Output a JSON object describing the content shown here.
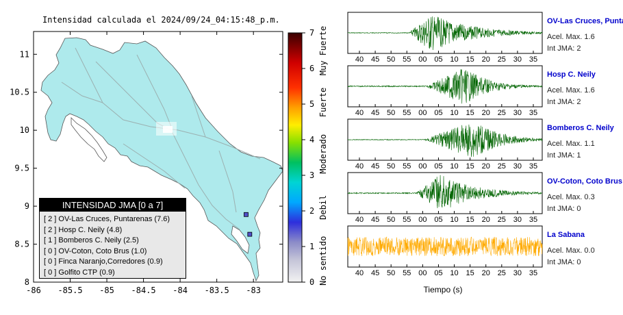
{
  "chart_data": [
    {
      "type": "map",
      "title": "Intensidad calculada el 2024/09/24_04:15:48_p.m.",
      "xlim": [
        -86,
        -82.6
      ],
      "ylim": [
        8,
        11.3
      ],
      "xticks": [
        "-86",
        "-85.5",
        "-85",
        "-84.5",
        "-84",
        "-83.5",
        "-83"
      ],
      "yticks": [
        "8",
        "8.5",
        "9",
        "9.5",
        "10",
        "10.5",
        "11"
      ],
      "land_color": "#aeeaec",
      "stations": [
        {
          "lon": -83.1,
          "lat": 8.89,
          "jma": 2
        },
        {
          "lon": -83.05,
          "lat": 8.63,
          "jma": 2
        }
      ]
    },
    {
      "type": "colorbar",
      "ticks": [
        "0",
        "1",
        "2",
        "3",
        "4",
        "5",
        "6",
        "7"
      ],
      "range": [
        0,
        7
      ],
      "labels": [
        "No sentido",
        "Debil",
        "Moderado",
        "Fuerte",
        "Muy Fuerte"
      ]
    },
    {
      "type": "line",
      "xlabel": "Tiempo (s)",
      "xticks": [
        "40",
        "45",
        "50",
        "55",
        "00",
        "05",
        "10",
        "15",
        "20",
        "25",
        "30",
        "35"
      ],
      "series": [
        {
          "name": "OV-Las Cruces, Puntar",
          "accel_label": "Acel. Max. 1.6",
          "jma_label": "Int JMA: 2",
          "color": "#006400",
          "onset": 1.25,
          "peak": 1.7,
          "decay": 3.5,
          "noise": 0.02
        },
        {
          "name": "Hosp C. Neily",
          "accel_label": "Acel. Max. 1.6",
          "jma_label": "Int JMA: 2",
          "color": "#006400",
          "onset": 1.6,
          "peak": 2.4,
          "decay": 6.0,
          "noise": 0.03
        },
        {
          "name": "Bomberos C. Neily",
          "accel_label": "Acel. Max. 1.1",
          "jma_label": "Int JMA: 1",
          "color": "#006400",
          "onset": 1.55,
          "peak": 2.6,
          "decay": 5.5,
          "noise": 0.02
        },
        {
          "name": "OV-Coton, Coto Brus",
          "accel_label": "Acel. Max. 0.3",
          "jma_label": "Int JMA: 0",
          "color": "#006400",
          "onset": 1.4,
          "peak": 1.9,
          "decay": 4.0,
          "noise": 0.03
        },
        {
          "name": "La Sabana",
          "accel_label": "Acel. Max. 0.0",
          "jma_label": "Int JMA: 0",
          "color": "#ffaa00",
          "onset": 0,
          "peak": 0,
          "decay": 0,
          "noise": 0.5
        }
      ]
    }
  ],
  "legend": {
    "title": "INTENSIDAD JMA [0 a 7]",
    "rows": [
      "[ 2 ]  OV-Las Cruces, Puntarenas (7.6)",
      "[ 2 ]  Hosp C. Neily (4.8)",
      "[ 1 ]  Bomberos C. Neily (2.5)",
      "[ 0 ]  OV-Coton, Coto Brus (1.0)",
      "[ 0 ]  Finca Naranjo,Corredores (0.9)",
      "[ 0 ]  Golfito CTP (0.9)"
    ]
  }
}
